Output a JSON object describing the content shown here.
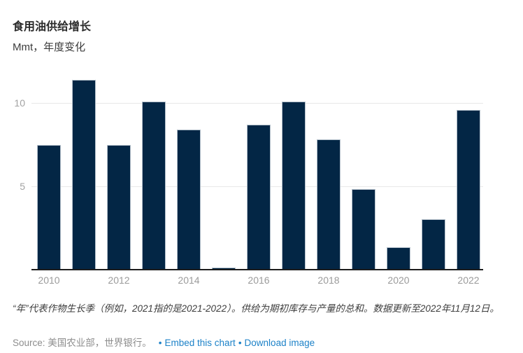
{
  "header": {
    "title": "食用油供给增长",
    "subtitle": "Mmt，年度变化"
  },
  "chart_data": {
    "type": "bar",
    "title": "食用油供给增长",
    "units_label": "Mmt，年度变化",
    "categories": [
      "2010",
      "2011",
      "2012",
      "2013",
      "2014",
      "2015",
      "2016",
      "2017",
      "2018",
      "2019",
      "2020",
      "2021",
      "2022"
    ],
    "values": [
      7.5,
      11.4,
      7.5,
      10.1,
      8.4,
      0.1,
      8.7,
      10.1,
      7.8,
      4.8,
      1.3,
      3.0,
      9.6
    ],
    "xlabel": "",
    "ylabel": "Mmt",
    "ylim": [
      0,
      12
    ],
    "yticks": [
      5,
      10
    ],
    "xtick_labels": [
      "2010",
      "2012",
      "2014",
      "2016",
      "2018",
      "2020",
      "2022"
    ],
    "grid": true,
    "legend": false,
    "bar_color": "#032645",
    "bar_border_color": "#b3bfca",
    "gridline_color": "#e8e8e8",
    "axis_line_color": "#1c1c1c",
    "tick_label_color": "#9b9b9b"
  },
  "footer": {
    "note": "“年”代表作物生长季（例如，2021指的是2021-2022）。供给为期初库存与产量的总和。数据更新至2022年11月12日。",
    "source": "Source: 美国农业部，世界银行。",
    "separator": "•",
    "links": [
      {
        "label": "Embed this chart"
      },
      {
        "label": "Download image"
      }
    ],
    "link_color": "#1d82c8"
  }
}
